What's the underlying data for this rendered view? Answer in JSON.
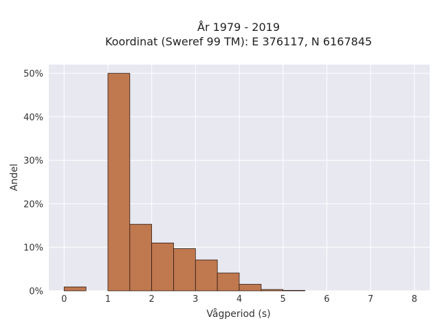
{
  "chart_data": {
    "type": "bar",
    "title": "År 1979 - 2019",
    "subtitle": "Koordinat (Sweref 99 TM): E 376117, N 6167845",
    "xlabel": "Vågperiod (s)",
    "ylabel": "Andel",
    "bin_width": 0.5,
    "bins": [
      {
        "start": 0.0,
        "value": 0.9
      },
      {
        "start": 0.5,
        "value": 0.0
      },
      {
        "start": 1.0,
        "value": 50.0
      },
      {
        "start": 1.5,
        "value": 15.3
      },
      {
        "start": 2.0,
        "value": 11.0
      },
      {
        "start": 2.5,
        "value": 9.7
      },
      {
        "start": 3.0,
        "value": 7.1
      },
      {
        "start": 3.5,
        "value": 4.1
      },
      {
        "start": 4.0,
        "value": 1.5
      },
      {
        "start": 4.5,
        "value": 0.3
      },
      {
        "start": 5.0,
        "value": 0.1
      }
    ],
    "xlim": [
      -0.35,
      8.35
    ],
    "ylim": [
      0,
      52
    ],
    "x_ticks": [
      "0",
      "1",
      "2",
      "3",
      "4",
      "5",
      "6",
      "7",
      "8"
    ],
    "y_ticks": [
      "0%",
      "10%",
      "20%",
      "30%",
      "40%",
      "50%"
    ],
    "grid": true,
    "colors": {
      "bar_fill": "#c0784f",
      "bar_stroke": "#2b1a12",
      "plot_bg": "#e8e8f1",
      "grid": "#ffffff"
    }
  }
}
